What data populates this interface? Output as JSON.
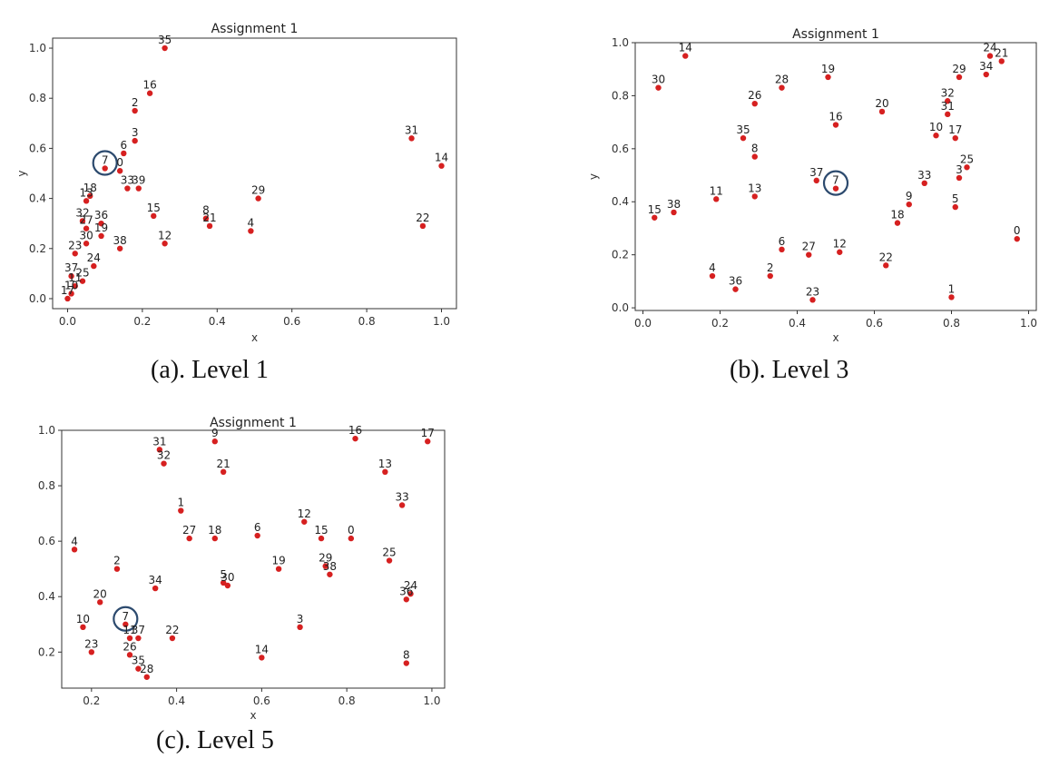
{
  "captions": {
    "a": "(a). Level 1",
    "b": "(b). Level 3",
    "c": "(c). Level 5"
  },
  "colors": {
    "point": "#d62020",
    "highlight": "#2c4a6e"
  },
  "chart_data": [
    {
      "id": "a",
      "type": "scatter",
      "title": "Assignment 1",
      "xlabel": "x",
      "ylabel": "y",
      "xlim": [
        -0.04,
        1.04
      ],
      "ylim": [
        -0.04,
        1.04
      ],
      "xticks": [
        "0.0",
        "0.2",
        "0.4",
        "0.6",
        "0.8",
        "1.0"
      ],
      "yticks": [
        "0.0",
        "0.2",
        "0.4",
        "0.6",
        "0.8",
        "1.0"
      ],
      "highlight": "7",
      "points": [
        {
          "label": "35",
          "x": 0.26,
          "y": 1.0
        },
        {
          "label": "16",
          "x": 0.22,
          "y": 0.82
        },
        {
          "label": "2",
          "x": 0.18,
          "y": 0.75
        },
        {
          "label": "3",
          "x": 0.18,
          "y": 0.63
        },
        {
          "label": "6",
          "x": 0.15,
          "y": 0.58
        },
        {
          "label": "7",
          "x": 0.1,
          "y": 0.52
        },
        {
          "label": "0",
          "x": 0.14,
          "y": 0.51
        },
        {
          "label": "33",
          "x": 0.16,
          "y": 0.44
        },
        {
          "label": "39",
          "x": 0.19,
          "y": 0.44
        },
        {
          "label": "18",
          "x": 0.06,
          "y": 0.41
        },
        {
          "label": "13",
          "x": 0.05,
          "y": 0.39
        },
        {
          "label": "32",
          "x": 0.04,
          "y": 0.31
        },
        {
          "label": "36",
          "x": 0.09,
          "y": 0.3
        },
        {
          "label": "27",
          "x": 0.05,
          "y": 0.28
        },
        {
          "label": "19",
          "x": 0.09,
          "y": 0.25
        },
        {
          "label": "30",
          "x": 0.05,
          "y": 0.22
        },
        {
          "label": "23",
          "x": 0.02,
          "y": 0.18
        },
        {
          "label": "24",
          "x": 0.07,
          "y": 0.13
        },
        {
          "label": "38",
          "x": 0.14,
          "y": 0.2
        },
        {
          "label": "15",
          "x": 0.23,
          "y": 0.33
        },
        {
          "label": "12",
          "x": 0.26,
          "y": 0.22
        },
        {
          "label": "8",
          "x": 0.37,
          "y": 0.32
        },
        {
          "label": "21",
          "x": 0.38,
          "y": 0.29
        },
        {
          "label": "29",
          "x": 0.51,
          "y": 0.4
        },
        {
          "label": "4",
          "x": 0.49,
          "y": 0.27
        },
        {
          "label": "31",
          "x": 0.92,
          "y": 0.64
        },
        {
          "label": "14",
          "x": 1.0,
          "y": 0.53
        },
        {
          "label": "22",
          "x": 0.95,
          "y": 0.29
        },
        {
          "label": "37",
          "x": 0.01,
          "y": 0.09
        },
        {
          "label": "25",
          "x": 0.04,
          "y": 0.07
        },
        {
          "label": "11",
          "x": 0.02,
          "y": 0.05
        },
        {
          "label": "10",
          "x": 0.01,
          "y": 0.02
        },
        {
          "label": "17",
          "x": 0.0,
          "y": 0.0
        }
      ]
    },
    {
      "id": "b",
      "type": "scatter",
      "title": "Assignment 1",
      "xlabel": "x",
      "ylabel": "y",
      "xlim": [
        -0.02,
        1.02
      ],
      "ylim": [
        -0.01,
        1.0
      ],
      "xticks": [
        "0.0",
        "0.2",
        "0.4",
        "0.6",
        "0.8",
        "1.0"
      ],
      "yticks": [
        "0.0",
        "0.2",
        "0.4",
        "0.6",
        "0.8",
        "1.0"
      ],
      "highlight": "7",
      "points": [
        {
          "label": "14",
          "x": 0.11,
          "y": 0.95
        },
        {
          "label": "30",
          "x": 0.04,
          "y": 0.83
        },
        {
          "label": "26",
          "x": 0.29,
          "y": 0.77
        },
        {
          "label": "28",
          "x": 0.36,
          "y": 0.83
        },
        {
          "label": "19",
          "x": 0.48,
          "y": 0.87
        },
        {
          "label": "16",
          "x": 0.5,
          "y": 0.69
        },
        {
          "label": "20",
          "x": 0.62,
          "y": 0.74
        },
        {
          "label": "24",
          "x": 0.9,
          "y": 0.95
        },
        {
          "label": "21",
          "x": 0.93,
          "y": 0.93
        },
        {
          "label": "34",
          "x": 0.89,
          "y": 0.88
        },
        {
          "label": "29",
          "x": 0.82,
          "y": 0.87
        },
        {
          "label": "32",
          "x": 0.79,
          "y": 0.78
        },
        {
          "label": "31",
          "x": 0.79,
          "y": 0.73
        },
        {
          "label": "10",
          "x": 0.76,
          "y": 0.65
        },
        {
          "label": "17",
          "x": 0.81,
          "y": 0.64
        },
        {
          "label": "35",
          "x": 0.26,
          "y": 0.64
        },
        {
          "label": "8",
          "x": 0.29,
          "y": 0.57
        },
        {
          "label": "25",
          "x": 0.84,
          "y": 0.53
        },
        {
          "label": "3",
          "x": 0.82,
          "y": 0.49
        },
        {
          "label": "33",
          "x": 0.73,
          "y": 0.47
        },
        {
          "label": "37",
          "x": 0.45,
          "y": 0.48
        },
        {
          "label": "7",
          "x": 0.5,
          "y": 0.45
        },
        {
          "label": "13",
          "x": 0.29,
          "y": 0.42
        },
        {
          "label": "11",
          "x": 0.19,
          "y": 0.41
        },
        {
          "label": "9",
          "x": 0.69,
          "y": 0.39
        },
        {
          "label": "5",
          "x": 0.81,
          "y": 0.38
        },
        {
          "label": "15",
          "x": 0.03,
          "y": 0.34
        },
        {
          "label": "38",
          "x": 0.08,
          "y": 0.36
        },
        {
          "label": "18",
          "x": 0.66,
          "y": 0.32
        },
        {
          "label": "0",
          "x": 0.97,
          "y": 0.26
        },
        {
          "label": "6",
          "x": 0.36,
          "y": 0.22
        },
        {
          "label": "27",
          "x": 0.43,
          "y": 0.2
        },
        {
          "label": "12",
          "x": 0.51,
          "y": 0.21
        },
        {
          "label": "22",
          "x": 0.63,
          "y": 0.16
        },
        {
          "label": "4",
          "x": 0.18,
          "y": 0.12
        },
        {
          "label": "2",
          "x": 0.33,
          "y": 0.12
        },
        {
          "label": "36",
          "x": 0.24,
          "y": 0.07
        },
        {
          "label": "23",
          "x": 0.44,
          "y": 0.03
        },
        {
          "label": "1",
          "x": 0.8,
          "y": 0.04
        }
      ]
    },
    {
      "id": "c",
      "type": "scatter",
      "title": "Assignment 1",
      "xlabel": "x",
      "ylabel": "",
      "xlim": [
        0.13,
        1.03
      ],
      "ylim": [
        0.07,
        1.0
      ],
      "xticks": [
        "0.2",
        "0.4",
        "0.6",
        "0.8",
        "1.0"
      ],
      "yticks": [
        "0.2",
        "0.4",
        "0.6",
        "0.8",
        "1.0"
      ],
      "highlight": "7",
      "points": [
        {
          "label": "9",
          "x": 0.49,
          "y": 0.96
        },
        {
          "label": "16",
          "x": 0.82,
          "y": 0.97
        },
        {
          "label": "17",
          "x": 0.99,
          "y": 0.96
        },
        {
          "label": "31",
          "x": 0.36,
          "y": 0.93
        },
        {
          "label": "32",
          "x": 0.37,
          "y": 0.88
        },
        {
          "label": "21",
          "x": 0.51,
          "y": 0.85
        },
        {
          "label": "13",
          "x": 0.89,
          "y": 0.85
        },
        {
          "label": "33",
          "x": 0.93,
          "y": 0.73
        },
        {
          "label": "1",
          "x": 0.41,
          "y": 0.71
        },
        {
          "label": "12",
          "x": 0.7,
          "y": 0.67
        },
        {
          "label": "27",
          "x": 0.43,
          "y": 0.61
        },
        {
          "label": "18",
          "x": 0.49,
          "y": 0.61
        },
        {
          "label": "6",
          "x": 0.59,
          "y": 0.62
        },
        {
          "label": "15",
          "x": 0.74,
          "y": 0.61
        },
        {
          "label": "0",
          "x": 0.81,
          "y": 0.61
        },
        {
          "label": "4",
          "x": 0.16,
          "y": 0.57
        },
        {
          "label": "25",
          "x": 0.9,
          "y": 0.53
        },
        {
          "label": "2",
          "x": 0.26,
          "y": 0.5
        },
        {
          "label": "19",
          "x": 0.64,
          "y": 0.5
        },
        {
          "label": "29",
          "x": 0.75,
          "y": 0.51
        },
        {
          "label": "38",
          "x": 0.76,
          "y": 0.48
        },
        {
          "label": "5",
          "x": 0.51,
          "y": 0.45
        },
        {
          "label": "30",
          "x": 0.52,
          "y": 0.44
        },
        {
          "label": "34",
          "x": 0.35,
          "y": 0.43
        },
        {
          "label": "24",
          "x": 0.95,
          "y": 0.41
        },
        {
          "label": "36",
          "x": 0.94,
          "y": 0.39
        },
        {
          "label": "20",
          "x": 0.22,
          "y": 0.38
        },
        {
          "label": "10",
          "x": 0.18,
          "y": 0.29
        },
        {
          "label": "3",
          "x": 0.69,
          "y": 0.29
        },
        {
          "label": "7",
          "x": 0.28,
          "y": 0.3
        },
        {
          "label": "11",
          "x": 0.29,
          "y": 0.25
        },
        {
          "label": "37",
          "x": 0.31,
          "y": 0.25
        },
        {
          "label": "22",
          "x": 0.39,
          "y": 0.25
        },
        {
          "label": "23",
          "x": 0.2,
          "y": 0.2
        },
        {
          "label": "26",
          "x": 0.29,
          "y": 0.19
        },
        {
          "label": "14",
          "x": 0.6,
          "y": 0.18
        },
        {
          "label": "35",
          "x": 0.31,
          "y": 0.14
        },
        {
          "label": "28",
          "x": 0.33,
          "y": 0.11
        },
        {
          "label": "8",
          "x": 0.94,
          "y": 0.16
        }
      ]
    }
  ]
}
